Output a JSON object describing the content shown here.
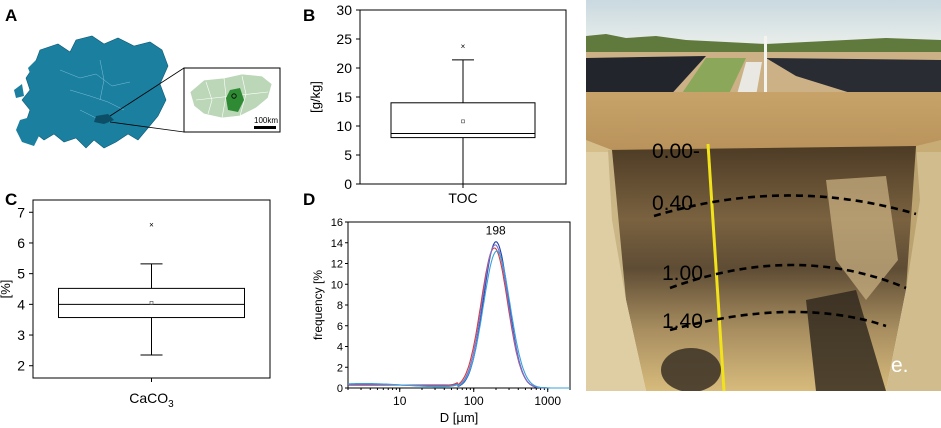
{
  "panels": {
    "A": {
      "letter": "A",
      "scale_label": "100km",
      "colors": {
        "europe": "#1b7fa0",
        "hungary": "#bcd7b8",
        "highlight": "#2f8a34"
      }
    },
    "B": {
      "letter": "B",
      "chart_data": {
        "type": "box",
        "categories": [
          "TOC"
        ],
        "ylabel": "[g/kg]",
        "ylim": [
          0,
          30
        ],
        "yticks": [
          0,
          5,
          10,
          15,
          20,
          25,
          30
        ],
        "box": {
          "min": 0,
          "q1": 8,
          "median": 8.7,
          "q3": 14,
          "max": 21.4,
          "mean": 10.8,
          "outlier": 23.8
        }
      }
    },
    "C": {
      "letter": "C",
      "chart_data": {
        "type": "box",
        "categories": [
          "CaCO3"
        ],
        "category_display": {
          "base": "CaCO",
          "sub": "3"
        },
        "ylabel": "[%]",
        "ylim": [
          1.6,
          7.4
        ],
        "yticks": [
          2,
          3,
          4,
          5,
          6,
          7
        ],
        "box": {
          "min": 2.35,
          "q1": 3.57,
          "median": 4.0,
          "q3": 4.52,
          "max": 5.32,
          "mean": 4.05,
          "outlier": 6.6
        }
      }
    },
    "D": {
      "letter": "D",
      "chart_data": {
        "type": "line",
        "xlabel": "D [µm]",
        "ylabel": "frequency [%",
        "xscale": "log",
        "xlim": [
          2,
          2000
        ],
        "xticks": [
          10,
          100,
          1000
        ],
        "ylim": [
          0,
          16
        ],
        "yticks": [
          0,
          2,
          4,
          6,
          8,
          10,
          12,
          14,
          16
        ],
        "annotation": "198",
        "series": [
          {
            "color": "#1f3ea8",
            "peak": 14.1,
            "center": 200,
            "width": 0.17
          },
          {
            "color": "#d63a3a",
            "peak": 13.5,
            "center": 190,
            "width": 0.18
          },
          {
            "color": "#7a6fd0",
            "peak": 13.8,
            "center": 195,
            "width": 0.175
          },
          {
            "color": "#3aa1d8",
            "peak": 13.2,
            "center": 205,
            "width": 0.18
          }
        ]
      }
    }
  },
  "photo": {
    "depth_labels": [
      "0.00-",
      "0.40",
      "1.00",
      "1.40"
    ],
    "label": "e.",
    "colors": {
      "sky": "#dfe7e8",
      "soil_top": "#caa46a",
      "soil_dark": "#5a4a33",
      "soil_pale": "#d8c08e",
      "tape": "#f2e21a"
    }
  }
}
